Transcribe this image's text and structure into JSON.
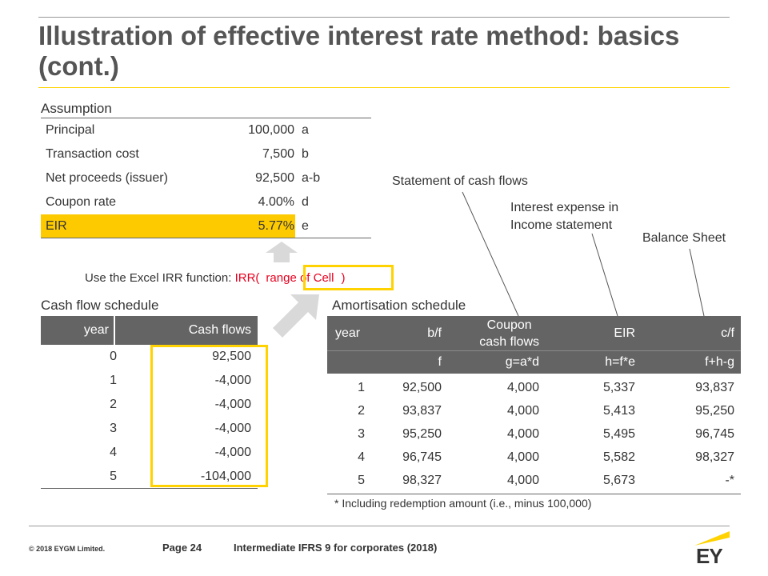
{
  "colors": {
    "accent": "#ffd200",
    "accent_fill": "#fdca00",
    "header_bg": "#646464",
    "red": "#e8001e"
  },
  "title": "Illustration of effective interest rate method: basics (cont.)",
  "assumption": {
    "label": "Assumption",
    "rows": [
      {
        "name": "Principal",
        "value": "100,000",
        "code": "a"
      },
      {
        "name": "Transaction cost",
        "value": "7,500",
        "code": "b"
      },
      {
        "name": "Net proceeds (issuer)",
        "value": "92,500",
        "code": "a-b"
      },
      {
        "name": "Coupon rate",
        "value": "4.00%",
        "code": "d"
      },
      {
        "name": "EIR",
        "value": "5.77%",
        "code": "e"
      }
    ]
  },
  "irr_note": {
    "prefix": "Use the Excel IRR function: ",
    "func": "IRR(",
    "arg": "range of Cell",
    "close": ")"
  },
  "cash_flow": {
    "label": "Cash flow schedule",
    "headers": [
      "year",
      "Cash flows"
    ],
    "rows": [
      {
        "year": "0",
        "value": "92,500"
      },
      {
        "year": "1",
        "value": "-4,000"
      },
      {
        "year": "2",
        "value": "-4,000"
      },
      {
        "year": "3",
        "value": "-4,000"
      },
      {
        "year": "4",
        "value": "-4,000"
      },
      {
        "year": "5",
        "value": "-104,000"
      }
    ]
  },
  "amortisation": {
    "label": "Amortisation schedule",
    "headers": [
      "year",
      "b/f",
      "Coupon\ncash flows",
      "EIR",
      "c/f"
    ],
    "formulas": [
      "",
      "f",
      "g=a*d",
      "h=f*e",
      "f+h-g"
    ],
    "rows": [
      {
        "year": "1",
        "bf": "92,500",
        "coupon": "4,000",
        "eir": "5,337",
        "cf": "93,837"
      },
      {
        "year": "2",
        "bf": "93,837",
        "coupon": "4,000",
        "eir": "5,413",
        "cf": "95,250"
      },
      {
        "year": "3",
        "bf": "95,250",
        "coupon": "4,000",
        "eir": "5,495",
        "cf": "96,745"
      },
      {
        "year": "4",
        "bf": "96,745",
        "coupon": "4,000",
        "eir": "5,582",
        "cf": "98,327"
      },
      {
        "year": "5",
        "bf": "98,327",
        "coupon": "4,000",
        "eir": "5,673",
        "cf": "-*"
      }
    ],
    "footnote": "* Including redemption amount (i.e., minus 100,000)"
  },
  "callouts": {
    "cash_flows": "Statement of cash flows",
    "interest_expense": "Interest expense in\nIncome statement",
    "balance_sheet": "Balance Sheet"
  },
  "footer": {
    "copyright": "© 2018 EYGM Limited.",
    "page": "Page 24",
    "course": "Intermediate IFRS 9 for corporates (2018)",
    "logo_text": "EY"
  }
}
